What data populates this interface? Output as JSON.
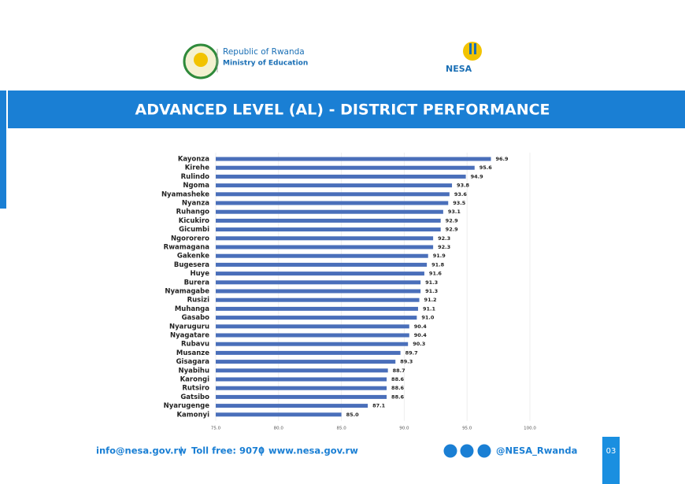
{
  "header": {
    "country": "Republic of Rwanda",
    "ministry": "Ministry of Education",
    "agency": "NESA"
  },
  "chart_data": {
    "type": "barh",
    "title": "ADVANCED LEVEL (AL) - DISTRICT PERFORMANCE",
    "categories": [
      "Kayonza",
      "Kirehe",
      "Rulindo",
      "Ngoma",
      "Nyamasheke",
      "Nyanza",
      "Ruhango",
      "Kicukiro",
      "Gicumbi",
      "Ngororero",
      "Rwamagana",
      "Gakenke",
      "Bugesera",
      "Huye",
      "Burera",
      "Nyamagabe",
      "Rusizi",
      "Muhanga",
      "Gasabo",
      "Nyaruguru",
      "Nyagatare",
      "Rubavu",
      "Musanze",
      "Gisagara",
      "Nyabihu",
      "Karongi",
      "Rutsiro",
      "Gatsibo",
      "Nyarugenge",
      "Kamonyi"
    ],
    "values": [
      96.9,
      95.6,
      94.9,
      93.8,
      93.6,
      93.5,
      93.1,
      92.9,
      92.9,
      92.3,
      92.3,
      91.9,
      91.8,
      91.6,
      91.3,
      91.3,
      91.2,
      91.1,
      91.0,
      90.4,
      90.4,
      90.3,
      89.7,
      89.3,
      88.7,
      88.6,
      88.6,
      88.6,
      87.1,
      85.0
    ],
    "value_labels": [
      "96.9",
      "95.6",
      "94.9",
      "93.8",
      "93.6",
      "93.5",
      "93.1",
      "92.9",
      "92.9",
      "92.3",
      "92.3",
      "91.9",
      "91.8",
      "91.6",
      "91.3",
      "91.3",
      "91.2",
      "91.1",
      "91.0",
      "90.4",
      "90.4",
      "90.3",
      "89.7",
      "89.3",
      "88.7",
      "88.6",
      "88.6",
      "88.6",
      "87.1",
      "85.0"
    ],
    "color": "#4a6fba",
    "xlim": [
      75,
      100
    ],
    "xticks": [
      {
        "value": 75,
        "label": "75.0"
      },
      {
        "value": 80,
        "label": "80.0"
      },
      {
        "value": 85,
        "label": "85.0"
      },
      {
        "value": 90,
        "label": "90.0"
      },
      {
        "value": 95,
        "label": "95.0"
      },
      {
        "value": 100,
        "label": "100.0"
      }
    ],
    "grid": true
  },
  "footer": {
    "email": "info@nesa.gov.rw",
    "phone": "Toll free: 9070",
    "website": "www.nesa.gov.rw",
    "handle": "@NESA_Rwanda",
    "page": "03"
  }
}
